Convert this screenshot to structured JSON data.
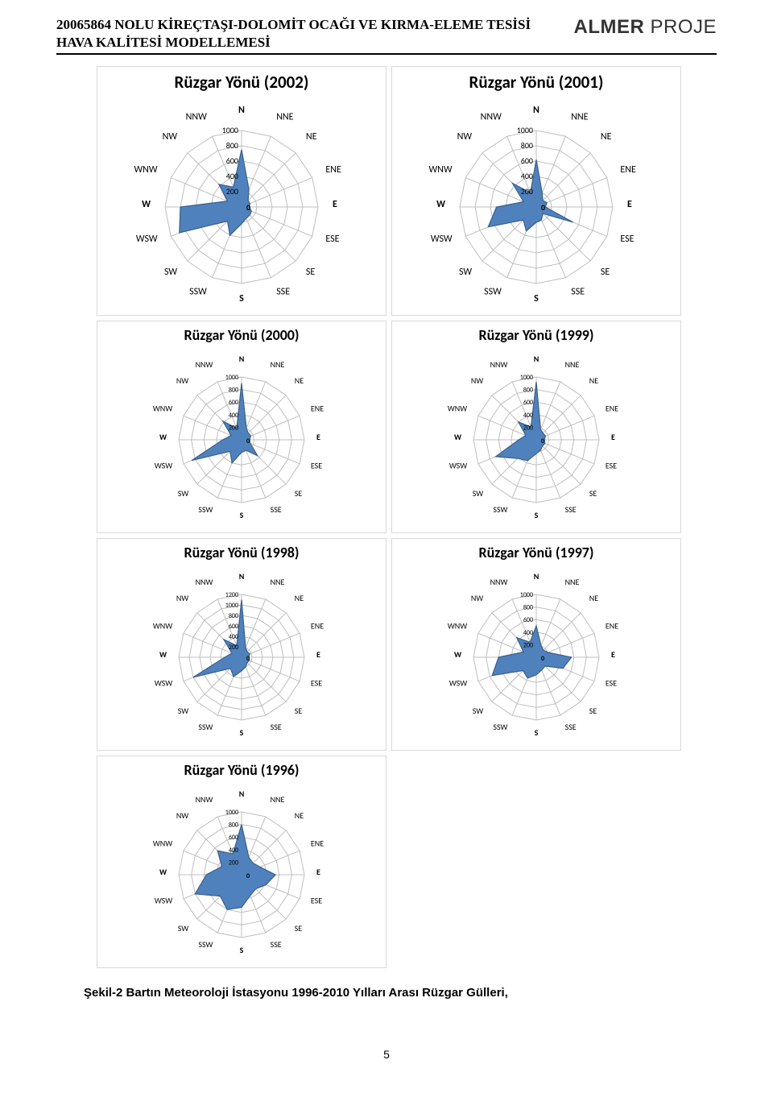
{
  "header": {
    "line1": "20065864 NOLU KİREÇTAŞI-DOLOMİT OCAĞI VE KIRMA-ELEME TESİSİ",
    "line2": "HAVA KALİTESİ MODELLEMESİ",
    "logo_bold": "ALMER",
    "logo_thin": "PROJE"
  },
  "caption": "Şekil-2 Bartın Meteoroloji İstasyonu 1996-2010 Yılları Arası Rüzgar Gülleri,",
  "page_number": "5",
  "directions": [
    "N",
    "NNE",
    "NE",
    "ENE",
    "E",
    "ESE",
    "SE",
    "SSE",
    "S",
    "SSW",
    "SW",
    "WSW",
    "W",
    "WNW",
    "NW",
    "NNW"
  ],
  "radar_style": {
    "fill": "#4f81bd",
    "stroke": "#3a5f8a",
    "grid": "#bfbfbf",
    "axis_label_color": "#000000",
    "center_label": "0",
    "axis_label_fontsize_row1": 11,
    "axis_label_fontsize_rowN": 9,
    "dir_fontsize_row1": 12,
    "dir_fontsize_rowN": 10,
    "tick_fontsize_row1": 10,
    "tick_fontsize_rowN": 8
  },
  "charts": [
    {
      "title": "Rüzgar Yönü (2002)",
      "row": "row1",
      "max": 1000,
      "ticks": [
        200,
        400,
        600,
        800,
        1000
      ],
      "values": [
        750,
        250,
        120,
        120,
        100,
        140,
        150,
        160,
        220,
        400,
        260,
        880,
        800,
        200,
        420,
        280
      ]
    },
    {
      "title": "Rüzgar Yönü (2001)",
      "row": "row1",
      "max": 1000,
      "ticks": [
        200,
        400,
        600,
        800,
        1000
      ],
      "values": [
        620,
        200,
        120,
        150,
        120,
        520,
        120,
        180,
        200,
        340,
        240,
        680,
        520,
        180,
        440,
        200
      ]
    },
    {
      "title": "Rüzgar Yönü (2000)",
      "row": "rowN",
      "max": 1000,
      "ticks": [
        200,
        400,
        600,
        800,
        1000
      ],
      "values": [
        900,
        200,
        150,
        160,
        130,
        150,
        360,
        180,
        200,
        400,
        260,
        860,
        300,
        180,
        420,
        200
      ]
    },
    {
      "title": "Rüzgar Yönü (1999)",
      "row": "rowN",
      "max": 1000,
      "ticks": [
        200,
        400,
        600,
        800,
        1000
      ],
      "values": [
        920,
        180,
        150,
        160,
        130,
        150,
        140,
        180,
        220,
        360,
        420,
        700,
        280,
        180,
        400,
        220
      ]
    },
    {
      "title": "Rüzgar Yönü (1998)",
      "row": "rowN",
      "max": 1200,
      "ticks": [
        200,
        400,
        600,
        800,
        1000,
        1200
      ],
      "values": [
        1100,
        200,
        150,
        170,
        140,
        160,
        150,
        200,
        260,
        400,
        300,
        1000,
        320,
        200,
        480,
        240
      ]
    },
    {
      "title": "Rüzgar Yönü (1997)",
      "row": "rowN",
      "max": 1000,
      "ticks": [
        200,
        400,
        600,
        800,
        1000
      ],
      "values": [
        500,
        200,
        160,
        200,
        560,
        460,
        200,
        220,
        280,
        360,
        300,
        760,
        600,
        220,
        440,
        260
      ]
    },
    {
      "title": "Rüzgar Yönü (1996)",
      "row": "rowN",
      "max": 1000,
      "ticks": [
        200,
        400,
        600,
        800,
        1000
      ],
      "values": [
        800,
        300,
        260,
        320,
        540,
        420,
        320,
        360,
        520,
        600,
        480,
        800,
        560,
        340,
        540,
        360
      ]
    }
  ]
}
